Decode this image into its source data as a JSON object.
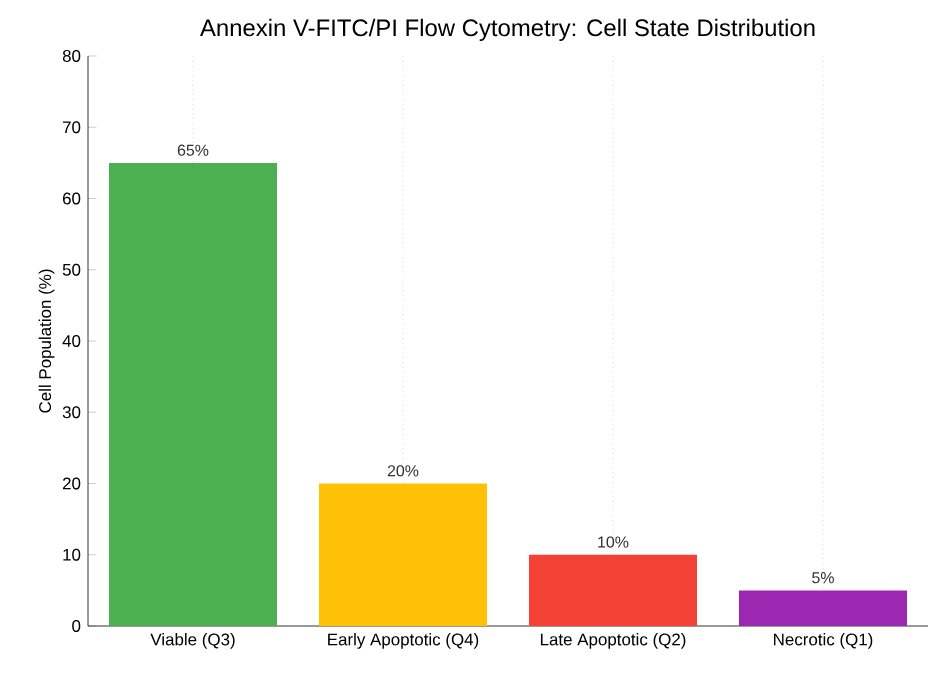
{
  "chart_data": {
    "type": "bar",
    "title": "Annexin V-FITC/PI Flow Cytometry: Cell State Distribution",
    "ylabel": "Cell Population (%)",
    "categories": [
      "Viable (Q3)",
      "Early Apoptotic (Q4)",
      "Late Apoptotic (Q2)",
      "Necrotic (Q1)"
    ],
    "values": [
      65,
      20,
      10,
      5
    ],
    "value_labels": [
      "65%",
      "20%",
      "10%",
      "5%"
    ],
    "colors": [
      "#4caf50",
      "#ffc107",
      "#f44336",
      "#9c27b0"
    ],
    "ylim": [
      0,
      80
    ],
    "yticks": [
      0,
      10,
      20,
      30,
      40,
      50,
      60,
      70,
      80
    ],
    "grid": "x"
  }
}
